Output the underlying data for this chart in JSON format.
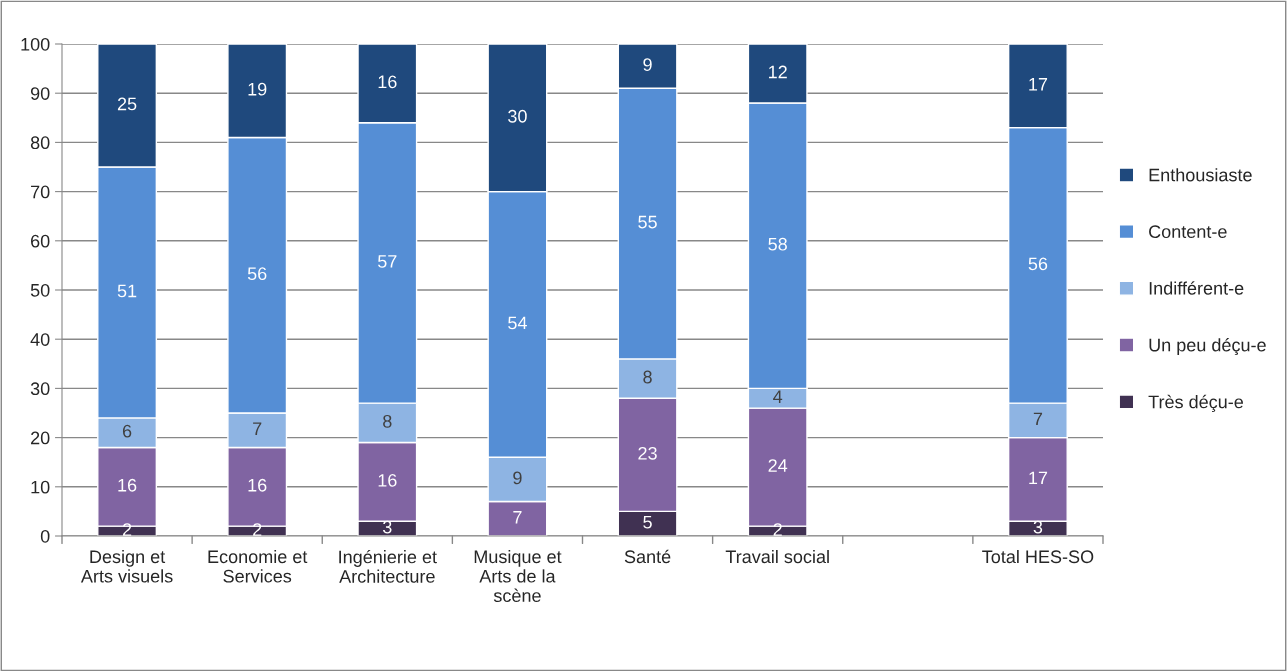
{
  "chart_data": {
    "type": "bar",
    "stacked": true,
    "categories": [
      "Design et\nArts visuels",
      "Economie et\nServices",
      "Ingénierie et\nArchitecture",
      "Musique et\nArts de la\nscène",
      "Santé",
      "Travail social",
      null,
      "Total HES-SO"
    ],
    "series": [
      {
        "name": "Très déçu-e",
        "color": "#403152",
        "values": [
          2,
          2,
          3,
          null,
          5,
          2,
          null,
          3
        ]
      },
      {
        "name": "Un peu déçu-e",
        "color": "#8064a2",
        "values": [
          16,
          16,
          16,
          7,
          23,
          24,
          null,
          17
        ]
      },
      {
        "name": "Indifférent-e",
        "color": "#8eb4e3",
        "values": [
          6,
          7,
          8,
          9,
          8,
          4,
          null,
          7
        ]
      },
      {
        "name": "Content-e",
        "color": "#558ed5",
        "values": [
          51,
          56,
          57,
          54,
          55,
          58,
          null,
          56
        ]
      },
      {
        "name": "Enthousiaste",
        "color": "#1f497d",
        "values": [
          25,
          19,
          16,
          30,
          9,
          12,
          null,
          17
        ]
      }
    ],
    "ylim": [
      0,
      100
    ],
    "yticks": [
      0,
      10,
      20,
      30,
      40,
      50,
      60,
      70,
      80,
      90,
      100
    ],
    "grid": "y",
    "legend": "right",
    "data_labels": true
  }
}
